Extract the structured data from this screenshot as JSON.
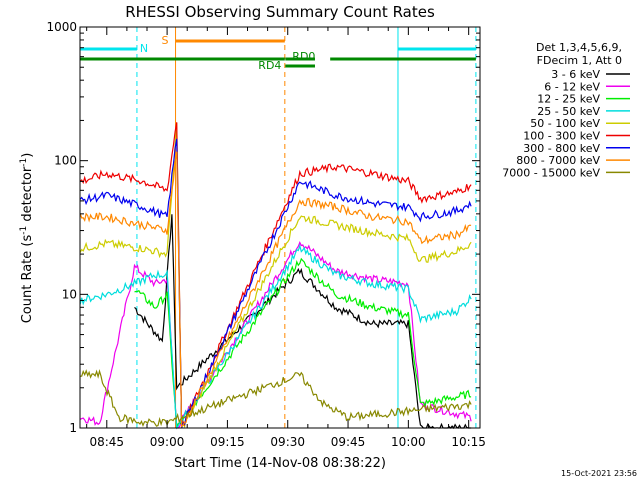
{
  "chart_data": {
    "type": "line",
    "title": "RHESSI Observing Summary Count Rates",
    "xlabel": "Start Time (14-Nov-08 08:38:22)",
    "ylabel_parts": [
      "Count Rate (s",
      "-1",
      " detector",
      "-1",
      ")"
    ],
    "x_ticks": [
      {
        "t": 8.75,
        "label": "08:45"
      },
      {
        "t": 9.0,
        "label": "09:00"
      },
      {
        "t": 9.25,
        "label": "09:15"
      },
      {
        "t": 9.5,
        "label": "09:30"
      },
      {
        "t": 9.75,
        "label": "09:45"
      },
      {
        "t": 10.0,
        "label": "10:00"
      },
      {
        "t": 10.25,
        "label": "10:15"
      }
    ],
    "x_range_hours": [
      8.639,
      10.297
    ],
    "y_range": [
      1,
      1000
    ],
    "y_scale": "log",
    "y_tick_labels": [
      {
        "v": 1,
        "label": "1"
      },
      {
        "v": 10,
        "label": "10"
      },
      {
        "v": 100,
        "label": "100"
      },
      {
        "v": 1000,
        "label": "1000"
      }
    ],
    "legend_header": [
      "Det 1,3,4,5,6,9,",
      "FDecim 1, Att 0"
    ],
    "series": [
      {
        "name": "3 - 6 keV",
        "color": "#000000",
        "values": [
          [
            8.865,
            8
          ],
          [
            8.92,
            6
          ],
          [
            8.98,
            4.5
          ],
          [
            9.02,
            40
          ],
          [
            9.04,
            2
          ],
          [
            9.55,
            15
          ],
          [
            9.7,
            8
          ],
          [
            9.85,
            6
          ],
          [
            10.0,
            6
          ],
          [
            10.05,
            1
          ],
          [
            10.2,
            1
          ],
          [
            10.26,
            1
          ]
        ]
      },
      {
        "name": "6 - 12 keV",
        "color": "#ee00ee",
        "values": [
          [
            8.64,
            1.2
          ],
          [
            8.72,
            1.1
          ],
          [
            8.865,
            16
          ],
          [
            8.95,
            12
          ],
          [
            9.0,
            13
          ],
          [
            9.04,
            1
          ],
          [
            9.55,
            25
          ],
          [
            9.7,
            15
          ],
          [
            9.85,
            13
          ],
          [
            10.0,
            12
          ],
          [
            10.05,
            1.5
          ],
          [
            10.26,
            1.2
          ]
        ]
      },
      {
        "name": "12 - 25 keV",
        "color": "#00ee00",
        "values": [
          [
            8.865,
            11
          ],
          [
            8.95,
            8
          ],
          [
            9.0,
            10
          ],
          [
            9.04,
            1
          ],
          [
            9.55,
            18
          ],
          [
            9.7,
            10
          ],
          [
            9.85,
            8
          ],
          [
            10.0,
            7
          ],
          [
            10.05,
            1.5
          ],
          [
            10.26,
            1.8
          ]
        ]
      },
      {
        "name": "25 - 50 keV",
        "color": "#00dddd",
        "values": [
          [
            8.64,
            9
          ],
          [
            8.75,
            10
          ],
          [
            8.865,
            12
          ],
          [
            8.95,
            14
          ],
          [
            9.0,
            14
          ],
          [
            9.04,
            1
          ],
          [
            9.55,
            22
          ],
          [
            9.7,
            14
          ],
          [
            9.85,
            12
          ],
          [
            10.0,
            11
          ],
          [
            10.05,
            6.5
          ],
          [
            10.2,
            7.5
          ],
          [
            10.26,
            9.5
          ]
        ]
      },
      {
        "name": "50 - 100 keV",
        "color": "#cccc00",
        "values": [
          [
            8.64,
            22
          ],
          [
            8.75,
            24
          ],
          [
            8.9,
            22
          ],
          [
            9.0,
            20
          ],
          [
            9.04,
            180
          ],
          [
            9.06,
            1
          ],
          [
            9.55,
            38
          ],
          [
            9.7,
            33
          ],
          [
            9.85,
            29
          ],
          [
            10.0,
            26
          ],
          [
            10.05,
            18
          ],
          [
            10.2,
            21
          ],
          [
            10.26,
            24
          ]
        ]
      },
      {
        "name": "100 - 300 keV",
        "color": "#ee0000",
        "values": [
          [
            8.64,
            70
          ],
          [
            8.75,
            80
          ],
          [
            8.9,
            70
          ],
          [
            9.0,
            60
          ],
          [
            9.04,
            200
          ],
          [
            9.06,
            1
          ],
          [
            9.55,
            80
          ],
          [
            9.7,
            90
          ],
          [
            9.85,
            80
          ],
          [
            10.0,
            70
          ],
          [
            10.05,
            52
          ],
          [
            10.2,
            58
          ],
          [
            10.26,
            66
          ]
        ]
      },
      {
        "name": "300 - 800 keV",
        "color": "#0000ee",
        "values": [
          [
            8.64,
            50
          ],
          [
            8.75,
            55
          ],
          [
            8.9,
            45
          ],
          [
            9.0,
            38
          ],
          [
            9.04,
            150
          ],
          [
            9.06,
            1
          ],
          [
            9.55,
            70
          ],
          [
            9.7,
            55
          ],
          [
            9.85,
            48
          ],
          [
            10.0,
            45
          ],
          [
            10.05,
            38
          ],
          [
            10.2,
            42
          ],
          [
            10.26,
            48
          ]
        ]
      },
      {
        "name": "800 - 7000 keV",
        "color": "#ff8800",
        "values": [
          [
            8.64,
            38
          ],
          [
            8.75,
            38
          ],
          [
            8.9,
            33
          ],
          [
            9.0,
            30
          ],
          [
            9.04,
            120
          ],
          [
            9.06,
            1
          ],
          [
            9.55,
            50
          ],
          [
            9.7,
            45
          ],
          [
            9.85,
            38
          ],
          [
            10.0,
            35
          ],
          [
            10.05,
            25
          ],
          [
            10.2,
            28
          ],
          [
            10.26,
            32
          ]
        ]
      },
      {
        "name": "7000 - 15000 keV",
        "color": "#888800",
        "values": [
          [
            8.64,
            2.5
          ],
          [
            8.72,
            2.5
          ],
          [
            8.8,
            1.2
          ],
          [
            8.9,
            1.1
          ],
          [
            9.0,
            1.1
          ],
          [
            9.55,
            2.5
          ],
          [
            9.65,
            1.5
          ],
          [
            9.75,
            1.2
          ],
          [
            10.26,
            1.5
          ]
        ]
      }
    ],
    "flags": [
      {
        "label": "N",
        "color": "#00e5ee",
        "segments": [
          [
            8.639,
            8.875
          ],
          [
            9.957,
            10.28
          ]
        ]
      },
      {
        "label": "S",
        "color": "#ff8800",
        "segments": [
          [
            9.035,
            9.488
          ]
        ]
      },
      {
        "label": "RD0",
        "color": "#008800",
        "segments": [
          [
            8.639,
            9.488
          ],
          [
            9.49,
            9.613
          ],
          [
            9.676,
            10.28
          ]
        ]
      },
      {
        "label": "RD4",
        "color": "#008800",
        "segments": [
          [
            9.49,
            9.613
          ]
        ]
      }
    ],
    "vertical_markers": [
      {
        "t": 8.639,
        "color": "#00e5ee",
        "style": "solid"
      },
      {
        "t": 8.875,
        "color": "#00e5ee",
        "style": "dashed"
      },
      {
        "t": 9.035,
        "color": "#ff8800",
        "style": "solid"
      },
      {
        "t": 9.488,
        "color": "#ff8800",
        "style": "dashed"
      },
      {
        "t": 9.957,
        "color": "#00e5ee",
        "style": "solid"
      },
      {
        "t": 10.28,
        "color": "#00e5ee",
        "style": "dashed"
      }
    ]
  },
  "timestamp": "15-Oct-2021 23:56"
}
